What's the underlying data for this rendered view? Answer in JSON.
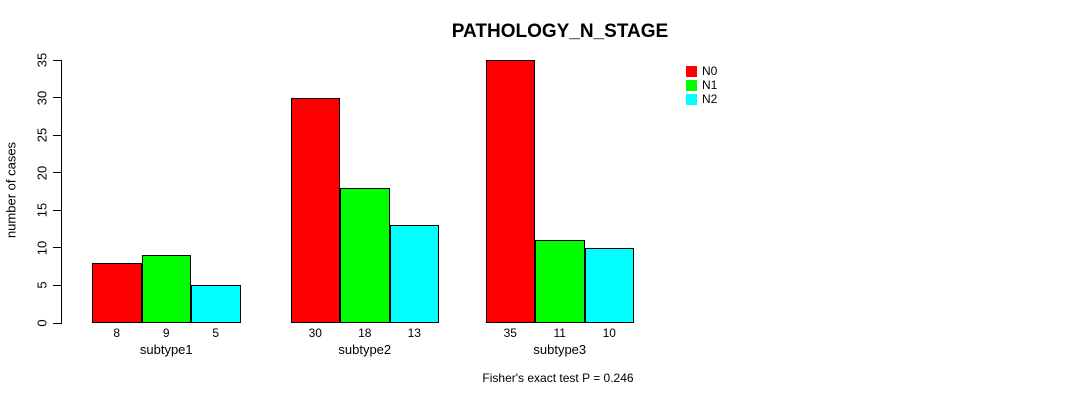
{
  "chart_data": {
    "type": "bar",
    "title": "PATHOLOGY_N_STAGE",
    "categories": [
      "subtype1",
      "subtype2",
      "subtype3"
    ],
    "series": [
      {
        "name": "N0",
        "color": "#ff0000",
        "values": [
          8,
          30,
          35
        ]
      },
      {
        "name": "N1",
        "color": "#00ff00",
        "values": [
          9,
          18,
          11
        ]
      },
      {
        "name": "N2",
        "color": "#00ffff",
        "values": [
          5,
          13,
          10
        ]
      }
    ],
    "xlabel": "",
    "ylabel": "number of cases",
    "ylim": [
      0,
      35
    ],
    "yticks": [
      0,
      5,
      10,
      15,
      20,
      25,
      30,
      35
    ],
    "grid": false,
    "legend_position": "top-right",
    "bar_border_color": "#000000",
    "background_color": "#ffffff",
    "annotation": "Fisher's exact test P = 0.246"
  }
}
